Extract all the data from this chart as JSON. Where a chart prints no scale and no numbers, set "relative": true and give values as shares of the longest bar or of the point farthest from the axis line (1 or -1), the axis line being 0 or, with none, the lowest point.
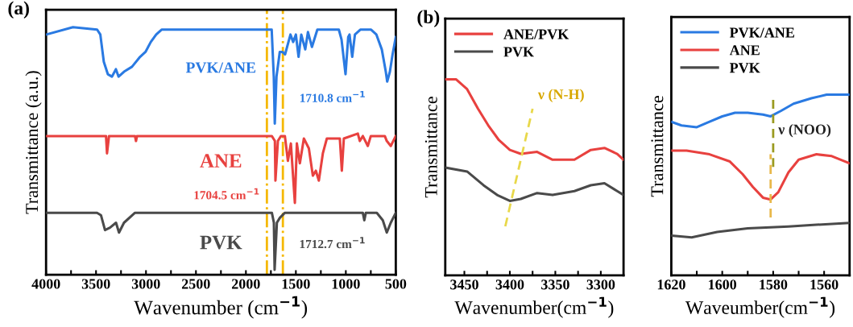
{
  "chart_data": [
    {
      "type": "line",
      "title": "(a)",
      "xlabel": "Wavenumber (cm$^{−1}$)",
      "ylabel": "Transmittance (a.u.)",
      "relative": true,
      "legend": false,
      "xlim": [
        4000,
        500
      ],
      "xticks": [
        4000,
        {
          "value": 3750,
          "label": null
        },
        3500,
        {
          "value": 3250,
          "label": null
        },
        3000,
        {
          "value": 2750,
          "label": null
        },
        2500,
        {
          "value": 2250,
          "label": null
        },
        2000,
        {
          "value": 1750,
          "label": null
        },
        1500,
        {
          "value": 1250,
          "label": null
        },
        1000,
        {
          "value": 750,
          "label": null
        },
        500
      ],
      "ref_lines": [
        {
          "axis": "x",
          "value": 1790,
          "label": null,
          "color": "#f5b800",
          "line_style": "dashdot"
        },
        {
          "axis": "x",
          "value": 1630,
          "label": null,
          "color": "#f5b800",
          "line_style": "dashdot"
        }
      ],
      "annotations": [
        {
          "text": "1710.8 cm$^{−1}$",
          "x": 1710.8,
          "y": 0.61
        },
        {
          "text": "1704.5 cm$^{−1}$",
          "x": 1704.5,
          "y": 0.38
        },
        {
          "text": "1712.7 cm$^{−1}$",
          "x": 1712.7,
          "y": 0.02
        }
      ],
      "series": [
        {
          "name": "PVK/ANE",
          "color": "#2a7ae2",
          "x": [
            4000,
            3731,
            3489,
            3457,
            3422,
            3382,
            3341,
            3301,
            3274,
            3220,
            3140,
            3059,
            3005,
            2952,
            2898,
            2844,
            1769,
            1742,
            1721,
            1711,
            1694,
            1661,
            1635,
            1608,
            1554,
            1527,
            1500,
            1473,
            1446,
            1406,
            1379,
            1339,
            1285,
            1070,
            1043,
            1003,
            976,
            963,
            936,
            909,
            855,
            747,
            694,
            640,
            600,
            586,
            559,
            532,
            500
          ],
          "values": [
            0.97,
            1.0,
            0.99,
            0.97,
            0.86,
            0.81,
            0.8,
            0.83,
            0.8,
            0.82,
            0.84,
            0.88,
            0.9,
            0.94,
            0.97,
            0.99,
            0.99,
            0.99,
            0.8,
            0.61,
            0.8,
            0.9,
            0.9,
            0.89,
            0.97,
            0.94,
            0.97,
            0.88,
            0.97,
            0.91,
            0.98,
            0.92,
            0.99,
            0.99,
            0.95,
            0.81,
            0.96,
            0.97,
            0.88,
            0.97,
            0.99,
            0.99,
            0.97,
            0.91,
            0.82,
            0.78,
            0.82,
            0.89,
            0.96
          ]
        },
        {
          "name": "ANE",
          "color": "#e8413f",
          "x": [
            4000,
            3460,
            3400,
            3390,
            3370,
            3110,
            3100,
            3090,
            3010,
            2840,
            1740,
            1710,
            1704.5,
            1680,
            1650,
            1610,
            1580,
            1550,
            1510,
            1490,
            1460,
            1420,
            1370,
            1330,
            1300,
            1270,
            1230,
            1190,
            1120,
            1060,
            1040,
            1020,
            880,
            860,
            830,
            780,
            750,
            610,
            590,
            550,
            500
          ],
          "values": [
            0.56,
            0.56,
            0.56,
            0.49,
            0.56,
            0.56,
            0.54,
            0.56,
            0.56,
            0.56,
            0.56,
            0.54,
            0.38,
            0.54,
            0.56,
            0.56,
            0.46,
            0.53,
            0.29,
            0.53,
            0.45,
            0.55,
            0.51,
            0.4,
            0.42,
            0.38,
            0.49,
            0.55,
            0.55,
            0.55,
            0.42,
            0.55,
            0.57,
            0.54,
            0.56,
            0.52,
            0.56,
            0.56,
            0.54,
            0.52,
            0.56
          ]
        },
        {
          "name": "PVK",
          "color": "#4a4a4a",
          "x": [
            4000,
            3490,
            3450,
            3410,
            3360,
            3300,
            3270,
            3220,
            3110,
            1740,
            1720,
            1712.7,
            1690,
            1660,
            1610,
            830,
            815,
            800,
            690,
            630,
            590,
            550,
            500
          ],
          "values": [
            0.25,
            0.25,
            0.24,
            0.18,
            0.19,
            0.21,
            0.17,
            0.21,
            0.25,
            0.25,
            0.21,
            0.02,
            0.21,
            0.23,
            0.25,
            0.25,
            0.22,
            0.25,
            0.25,
            0.22,
            0.17,
            0.21,
            0.25
          ]
        }
      ]
    },
    {
      "type": "line",
      "title": "(b)",
      "xlabel": "Wavenumber(cm$^{−1}$)",
      "ylabel": "Transmittance",
      "relative": true,
      "legend": "top left",
      "xlim": [
        3471,
        3275
      ],
      "xticks": [
        3450,
        {
          "value": 3425,
          "label": null
        },
        3400,
        {
          "value": 3375,
          "label": null
        },
        3350,
        {
          "value": 3325,
          "label": null
        },
        3300
      ],
      "annotations": [
        "ν (N-H)"
      ],
      "series": [
        {
          "name": "ANE/PVK",
          "color": "#e8413f",
          "x": [
            3471,
            3459,
            3447,
            3435,
            3423,
            3412,
            3400,
            3388,
            3370,
            3353,
            3329,
            3311,
            3296,
            3282,
            3275
          ],
          "values": [
            1.0,
            1.0,
            0.95,
            0.85,
            0.76,
            0.69,
            0.64,
            0.62,
            0.63,
            0.59,
            0.59,
            0.64,
            0.65,
            0.62,
            0.59
          ]
        },
        {
          "name": "PVK",
          "color": "#4a4a4a",
          "x": [
            3471,
            3447,
            3429,
            3414,
            3400,
            3388,
            3370,
            3353,
            3329,
            3311,
            3296,
            3282,
            3275
          ],
          "values": [
            0.55,
            0.53,
            0.46,
            0.41,
            0.38,
            0.39,
            0.42,
            0.41,
            0.43,
            0.46,
            0.47,
            0.43,
            0.41
          ]
        },
        {
          "color": "#e8d84a",
          "line_style": "dashed",
          "x": [
            3405,
            3375
          ],
          "values": [
            0.25,
            0.85
          ]
        }
      ]
    },
    {
      "type": "line",
      "xlabel": "Waveumber(cm$^{−1}$)",
      "ylabel": "Transmittance",
      "relative": true,
      "legend": "top left",
      "xlim": [
        1620,
        1550
      ],
      "xticks": [
        1620,
        {
          "value": 1610,
          "label": null
        },
        1600,
        {
          "value": 1590,
          "label": null
        },
        1580,
        {
          "value": 1570,
          "label": null
        },
        1560
      ],
      "annotations": [
        "ν (NOO)"
      ],
      "series": [
        {
          "name": "PVK/ANE",
          "color": "#2a7ae2",
          "x": [
            1620,
            1616,
            1610,
            1605,
            1600,
            1595,
            1590,
            1584,
            1581,
            1577,
            1572,
            1565,
            1559,
            1550
          ],
          "values": [
            0.85,
            0.83,
            0.82,
            0.85,
            0.88,
            0.9,
            0.9,
            0.89,
            0.88,
            0.91,
            0.95,
            0.98,
            1.0,
            1.0
          ]
        },
        {
          "name": "ANE",
          "color": "#e8413f",
          "x": [
            1620,
            1614,
            1605,
            1597,
            1592,
            1588,
            1584,
            1581,
            1578,
            1574,
            1570,
            1563,
            1557,
            1550
          ],
          "values": [
            0.69,
            0.69,
            0.67,
            0.63,
            0.56,
            0.49,
            0.43,
            0.42,
            0.46,
            0.57,
            0.64,
            0.67,
            0.66,
            0.62
          ]
        },
        {
          "name": "PVK",
          "color": "#4a4a4a",
          "x": [
            1620,
            1612,
            1602,
            1590,
            1574,
            1563,
            1550
          ],
          "values": [
            0.22,
            0.21,
            0.24,
            0.26,
            0.27,
            0.28,
            0.29
          ]
        },
        {
          "color": "#e8b84a",
          "line_style": "dashed",
          "x": [
            1581,
            1581
          ],
          "values": [
            0.32,
            0.67
          ]
        },
        {
          "color": "#9a9a20",
          "line_style": "dashed",
          "x": [
            1580,
            1580
          ],
          "values": [
            0.6,
            0.98
          ]
        }
      ]
    }
  ]
}
